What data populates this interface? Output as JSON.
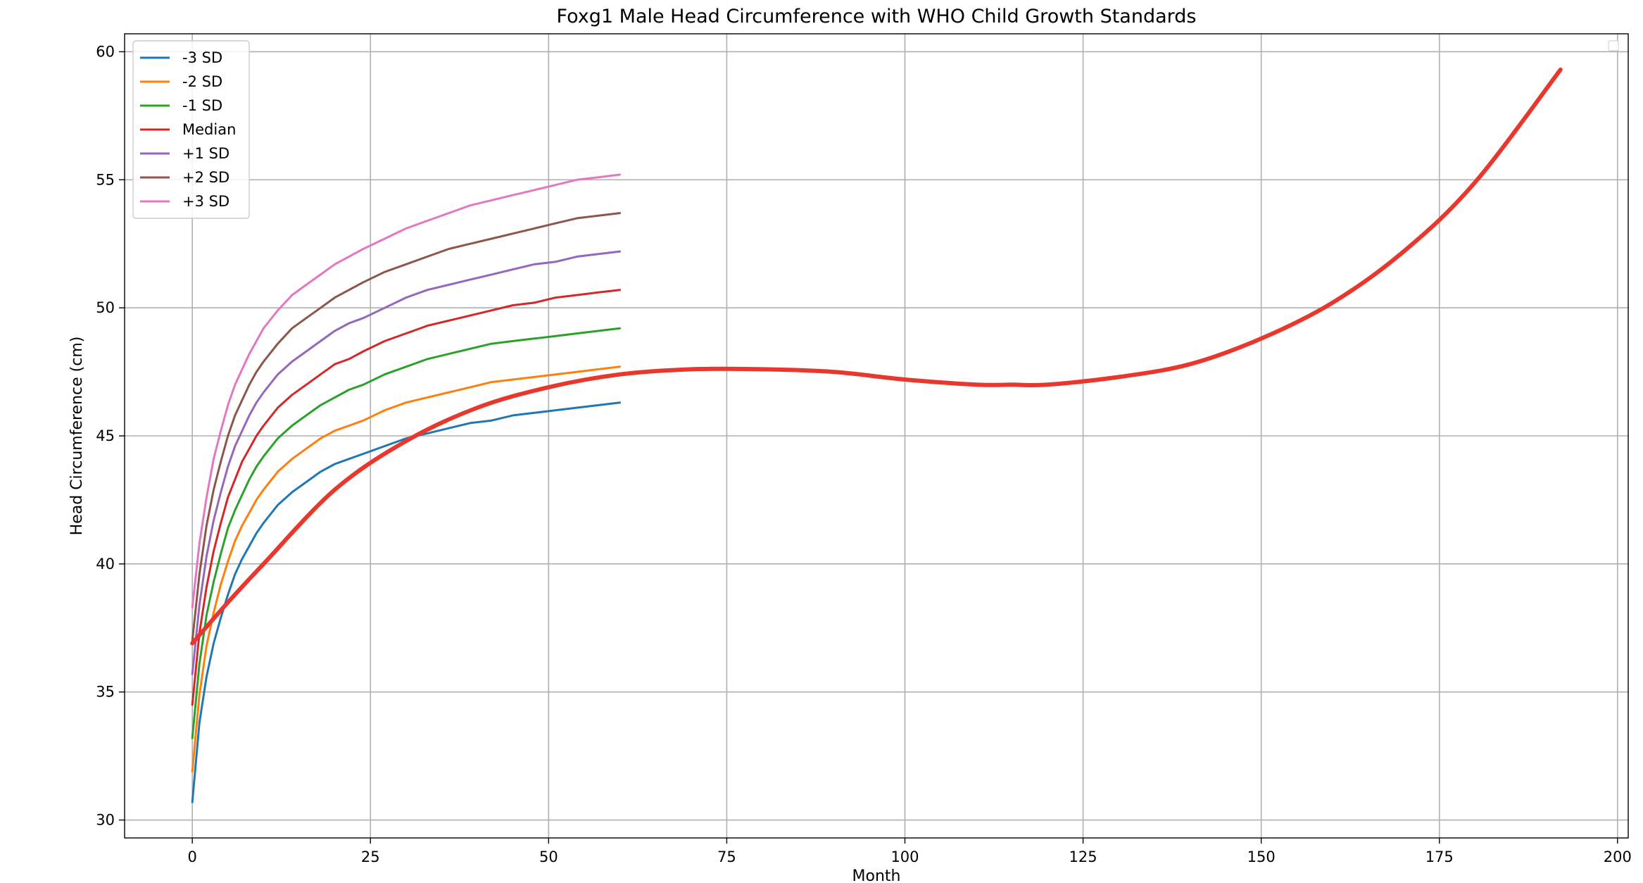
{
  "chart_data": {
    "type": "line",
    "title": "Foxg1 Male Head Circumference with WHO Child Growth Standards",
    "xlabel": "Month",
    "ylabel": "Head Circumference (cm)",
    "xlim": [
      -9.5,
      201.5
    ],
    "ylim": [
      29.3,
      60.7
    ],
    "xticks": [
      0,
      25,
      50,
      75,
      100,
      125,
      150,
      175,
      200
    ],
    "yticks": [
      30,
      35,
      40,
      45,
      50,
      55,
      60
    ],
    "grid": true,
    "legend": "top-left",
    "x": [
      0,
      1,
      2,
      3,
      4,
      5,
      6,
      7,
      8,
      9,
      10,
      12,
      14,
      16,
      18,
      20,
      22,
      24,
      27,
      30,
      33,
      36,
      39,
      42,
      45,
      48,
      51,
      54,
      57,
      60
    ],
    "series": [
      {
        "name": "-3 SD",
        "color": "#1f77b4",
        "values": [
          30.7,
          33.8,
          35.6,
          36.9,
          37.9,
          38.8,
          39.6,
          40.2,
          40.7,
          41.2,
          41.6,
          42.3,
          42.8,
          43.2,
          43.6,
          43.9,
          44.1,
          44.3,
          44.6,
          44.9,
          45.1,
          45.3,
          45.5,
          45.6,
          45.8,
          45.9,
          46.0,
          46.1,
          46.2,
          46.3
        ]
      },
      {
        "name": "-2 SD",
        "color": "#ff7f0e",
        "values": [
          31.9,
          34.9,
          36.8,
          38.1,
          39.2,
          40.1,
          40.9,
          41.5,
          42.0,
          42.5,
          42.9,
          43.6,
          44.1,
          44.5,
          44.9,
          45.2,
          45.4,
          45.6,
          46.0,
          46.3,
          46.5,
          46.7,
          46.9,
          47.1,
          47.2,
          47.3,
          47.4,
          47.5,
          47.6,
          47.7
        ]
      },
      {
        "name": "-1 SD",
        "color": "#2ca02c",
        "values": [
          33.2,
          36.1,
          38.0,
          39.3,
          40.4,
          41.4,
          42.1,
          42.7,
          43.3,
          43.8,
          44.2,
          44.9,
          45.4,
          45.8,
          46.2,
          46.5,
          46.8,
          47.0,
          47.4,
          47.7,
          48.0,
          48.2,
          48.4,
          48.6,
          48.7,
          48.8,
          48.9,
          49.0,
          49.1,
          49.2
        ]
      },
      {
        "name": "Median",
        "color": "#d62728",
        "values": [
          34.5,
          37.3,
          39.1,
          40.5,
          41.6,
          42.6,
          43.3,
          44.0,
          44.5,
          45.0,
          45.4,
          46.1,
          46.6,
          47.0,
          47.4,
          47.8,
          48.0,
          48.3,
          48.7,
          49.0,
          49.3,
          49.5,
          49.7,
          49.9,
          50.1,
          50.2,
          50.4,
          50.5,
          50.6,
          50.7
        ]
      },
      {
        "name": "+1 SD",
        "color": "#9467bd",
        "values": [
          35.7,
          38.4,
          40.3,
          41.7,
          42.8,
          43.8,
          44.6,
          45.2,
          45.8,
          46.3,
          46.7,
          47.4,
          47.9,
          48.3,
          48.7,
          49.1,
          49.4,
          49.6,
          50.0,
          50.4,
          50.7,
          50.9,
          51.1,
          51.3,
          51.5,
          51.7,
          51.8,
          52.0,
          52.1,
          52.2
        ]
      },
      {
        "name": "+2 SD",
        "color": "#8c564b",
        "values": [
          37.0,
          39.6,
          41.5,
          42.9,
          44.0,
          45.0,
          45.8,
          46.4,
          47.0,
          47.5,
          47.9,
          48.6,
          49.2,
          49.6,
          50.0,
          50.4,
          50.7,
          51.0,
          51.4,
          51.7,
          52.0,
          52.3,
          52.5,
          52.7,
          52.9,
          53.1,
          53.3,
          53.5,
          53.6,
          53.7
        ]
      },
      {
        "name": "+3 SD",
        "color": "#e377c2",
        "values": [
          38.3,
          40.8,
          42.6,
          44.1,
          45.2,
          46.2,
          47.0,
          47.6,
          48.2,
          48.7,
          49.2,
          49.9,
          50.5,
          50.9,
          51.3,
          51.7,
          52.0,
          52.3,
          52.7,
          53.1,
          53.4,
          53.7,
          54.0,
          54.2,
          54.4,
          54.6,
          54.8,
          55.0,
          55.1,
          55.2
        ]
      }
    ],
    "fit_curve": {
      "color": "#e8382d",
      "x": [
        0,
        5,
        10,
        20,
        30,
        40,
        50,
        60,
        70,
        80,
        90,
        100,
        110,
        115,
        120,
        130,
        140,
        150,
        160,
        170,
        180,
        192
      ],
      "y": [
        36.9,
        38.5,
        40.0,
        42.9,
        44.8,
        46.1,
        46.9,
        47.4,
        47.6,
        47.6,
        47.5,
        47.2,
        47.0,
        47.0,
        47.0,
        47.3,
        47.8,
        48.8,
        50.2,
        52.2,
        54.9,
        59.3
      ]
    }
  }
}
